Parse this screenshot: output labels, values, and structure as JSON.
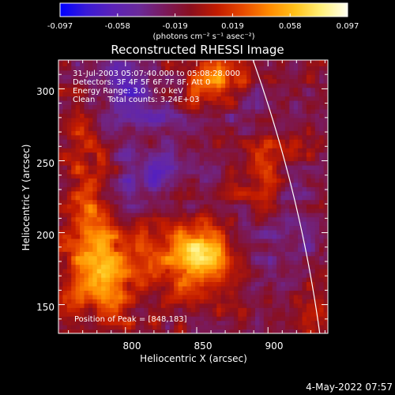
{
  "colorbar": {
    "tick_labels": [
      "-0.097",
      "-0.058",
      "-0.019",
      "0.019",
      "0.058",
      "0.097"
    ],
    "range": [
      -0.097,
      0.097
    ],
    "unit_label": "(photons cm⁻² s⁻¹ asec⁻²)",
    "colormap": [
      "#0000ff",
      "#3a1ad6",
      "#5b22b8",
      "#6a2a9a",
      "#7a1a5c",
      "#8a0f1e",
      "#c21b00",
      "#e84a00",
      "#ff8a00",
      "#ffc21a",
      "#fff07a",
      "#fffff0"
    ]
  },
  "chart_data": {
    "type": "heatmap",
    "title": "Reconstructed RHESSI Image",
    "xlabel": "Heliocentric X (arcsec)",
    "ylabel": "Heliocentric Y (arcsec)",
    "xlim": [
      753,
      942
    ],
    "ylim": [
      130,
      320
    ],
    "x_ticks": [
      "800",
      "850",
      "900"
    ],
    "y_ticks": [
      "150",
      "200",
      "250",
      "300"
    ],
    "x_tick_values": [
      800,
      850,
      900
    ],
    "y_tick_values": [
      150,
      200,
      250,
      300
    ],
    "peak": [
      848,
      183
    ],
    "sources": [
      {
        "x": 848,
        "y": 183,
        "amp": 1.0,
        "sx": 18,
        "sy": 16
      },
      {
        "x": 785,
        "y": 175,
        "amp": 0.75,
        "sx": 18,
        "sy": 22
      },
      {
        "x": 862,
        "y": 303,
        "amp": 0.7,
        "sx": 16,
        "sy": 12
      },
      {
        "x": 895,
        "y": 250,
        "amp": 0.45,
        "sx": 10,
        "sy": 22
      },
      {
        "x": 772,
        "y": 232,
        "amp": 0.4,
        "sx": 12,
        "sy": 40
      },
      {
        "x": 930,
        "y": 140,
        "amp": 0.35,
        "sx": 10,
        "sy": 14
      },
      {
        "x": 815,
        "y": 235,
        "amp": -0.45,
        "sx": 20,
        "sy": 14
      },
      {
        "x": 890,
        "y": 282,
        "amp": -0.4,
        "sx": 16,
        "sy": 14
      },
      {
        "x": 915,
        "y": 192,
        "amp": -0.35,
        "sx": 18,
        "sy": 22
      },
      {
        "x": 812,
        "y": 285,
        "amp": -0.3,
        "sx": 22,
        "sy": 14
      },
      {
        "x": 790,
        "y": 300,
        "amp": -0.35,
        "sx": 18,
        "sy": 16
      }
    ],
    "limb_arc": {
      "center": [
        0,
        0
      ],
      "radius": 945.3
    }
  },
  "annotations": {
    "time_range": "31-Jul-2003 05:07:40.000 to 05:08:28.000",
    "detectors": "Detectors: 3F 4F 5F 6F 7F 8F, Att 0",
    "energy": "Energy Range: 3.0 - 6.0 keV",
    "clean": "Clean     Total counts: 3.24E+03",
    "peak_text": "Position of Peak = [848,183]"
  },
  "footer": {
    "timestamp": "4-May-2022 07:57"
  }
}
